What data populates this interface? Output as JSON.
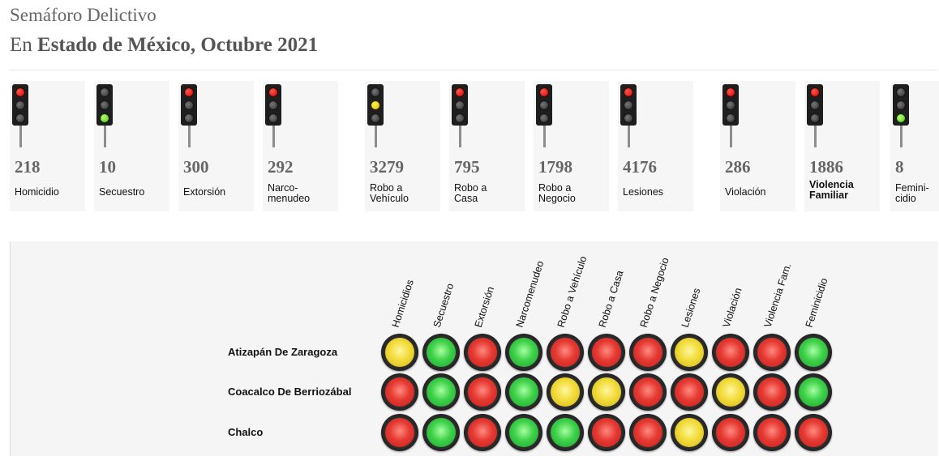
{
  "header": {
    "title": "Semáforo Delictivo",
    "prefix": "En ",
    "region": "Estado de México, Octubre 2021"
  },
  "indicators": [
    {
      "count": "218",
      "label": "Homicidio",
      "status": "red"
    },
    {
      "count": "10",
      "label": "Secuestro",
      "status": "green"
    },
    {
      "count": "300",
      "label": "Extorsión",
      "status": "red"
    },
    {
      "count": "292",
      "label_lines": [
        "Narco-",
        "menudeo"
      ],
      "status": "red"
    },
    {
      "count": "3279",
      "label_lines": [
        "Robo a",
        "Vehículo"
      ],
      "status": "yellow"
    },
    {
      "count": "795",
      "label_lines": [
        "Robo a",
        "Casa"
      ],
      "status": "red"
    },
    {
      "count": "1798",
      "label_lines": [
        "Robo a",
        "Negocio"
      ],
      "status": "red"
    },
    {
      "count": "4176",
      "label": "Lesiones",
      "status": "red"
    },
    {
      "count": "286",
      "label": "Violación",
      "status": "red"
    },
    {
      "count": "1886",
      "label_lines": [
        "Violencia",
        "Familiar"
      ],
      "status": "red"
    },
    {
      "count": "8",
      "label_lines": [
        "Femini-",
        "cidio"
      ],
      "status": "green"
    }
  ],
  "matrix": {
    "columns": [
      "Homicidios",
      "Secuestro",
      "Extorsión",
      "Narcomenudeo",
      "Robo a Vehículo",
      "Robo a Casa",
      "Robo a Negocio",
      "Lesiones",
      "Violación",
      "Violencia Fam.",
      "Feminicidio"
    ],
    "rows": [
      {
        "name": "Atizapán De Zaragoza",
        "values": [
          "yellow",
          "green",
          "red",
          "green",
          "red",
          "red",
          "red",
          "yellow",
          "red",
          "red",
          "green"
        ]
      },
      {
        "name": "Coacalco De Berriozábal",
        "values": [
          "red",
          "green",
          "red",
          "green",
          "yellow",
          "yellow",
          "red",
          "red",
          "yellow",
          "red",
          "green"
        ]
      },
      {
        "name": "Chalco",
        "values": [
          "red",
          "green",
          "red",
          "green",
          "green",
          "red",
          "red",
          "yellow",
          "red",
          "red",
          "red"
        ]
      }
    ]
  },
  "colors": {
    "red": "#e00a0a",
    "yellow": "#e8c400",
    "green": "#5bd41a"
  }
}
